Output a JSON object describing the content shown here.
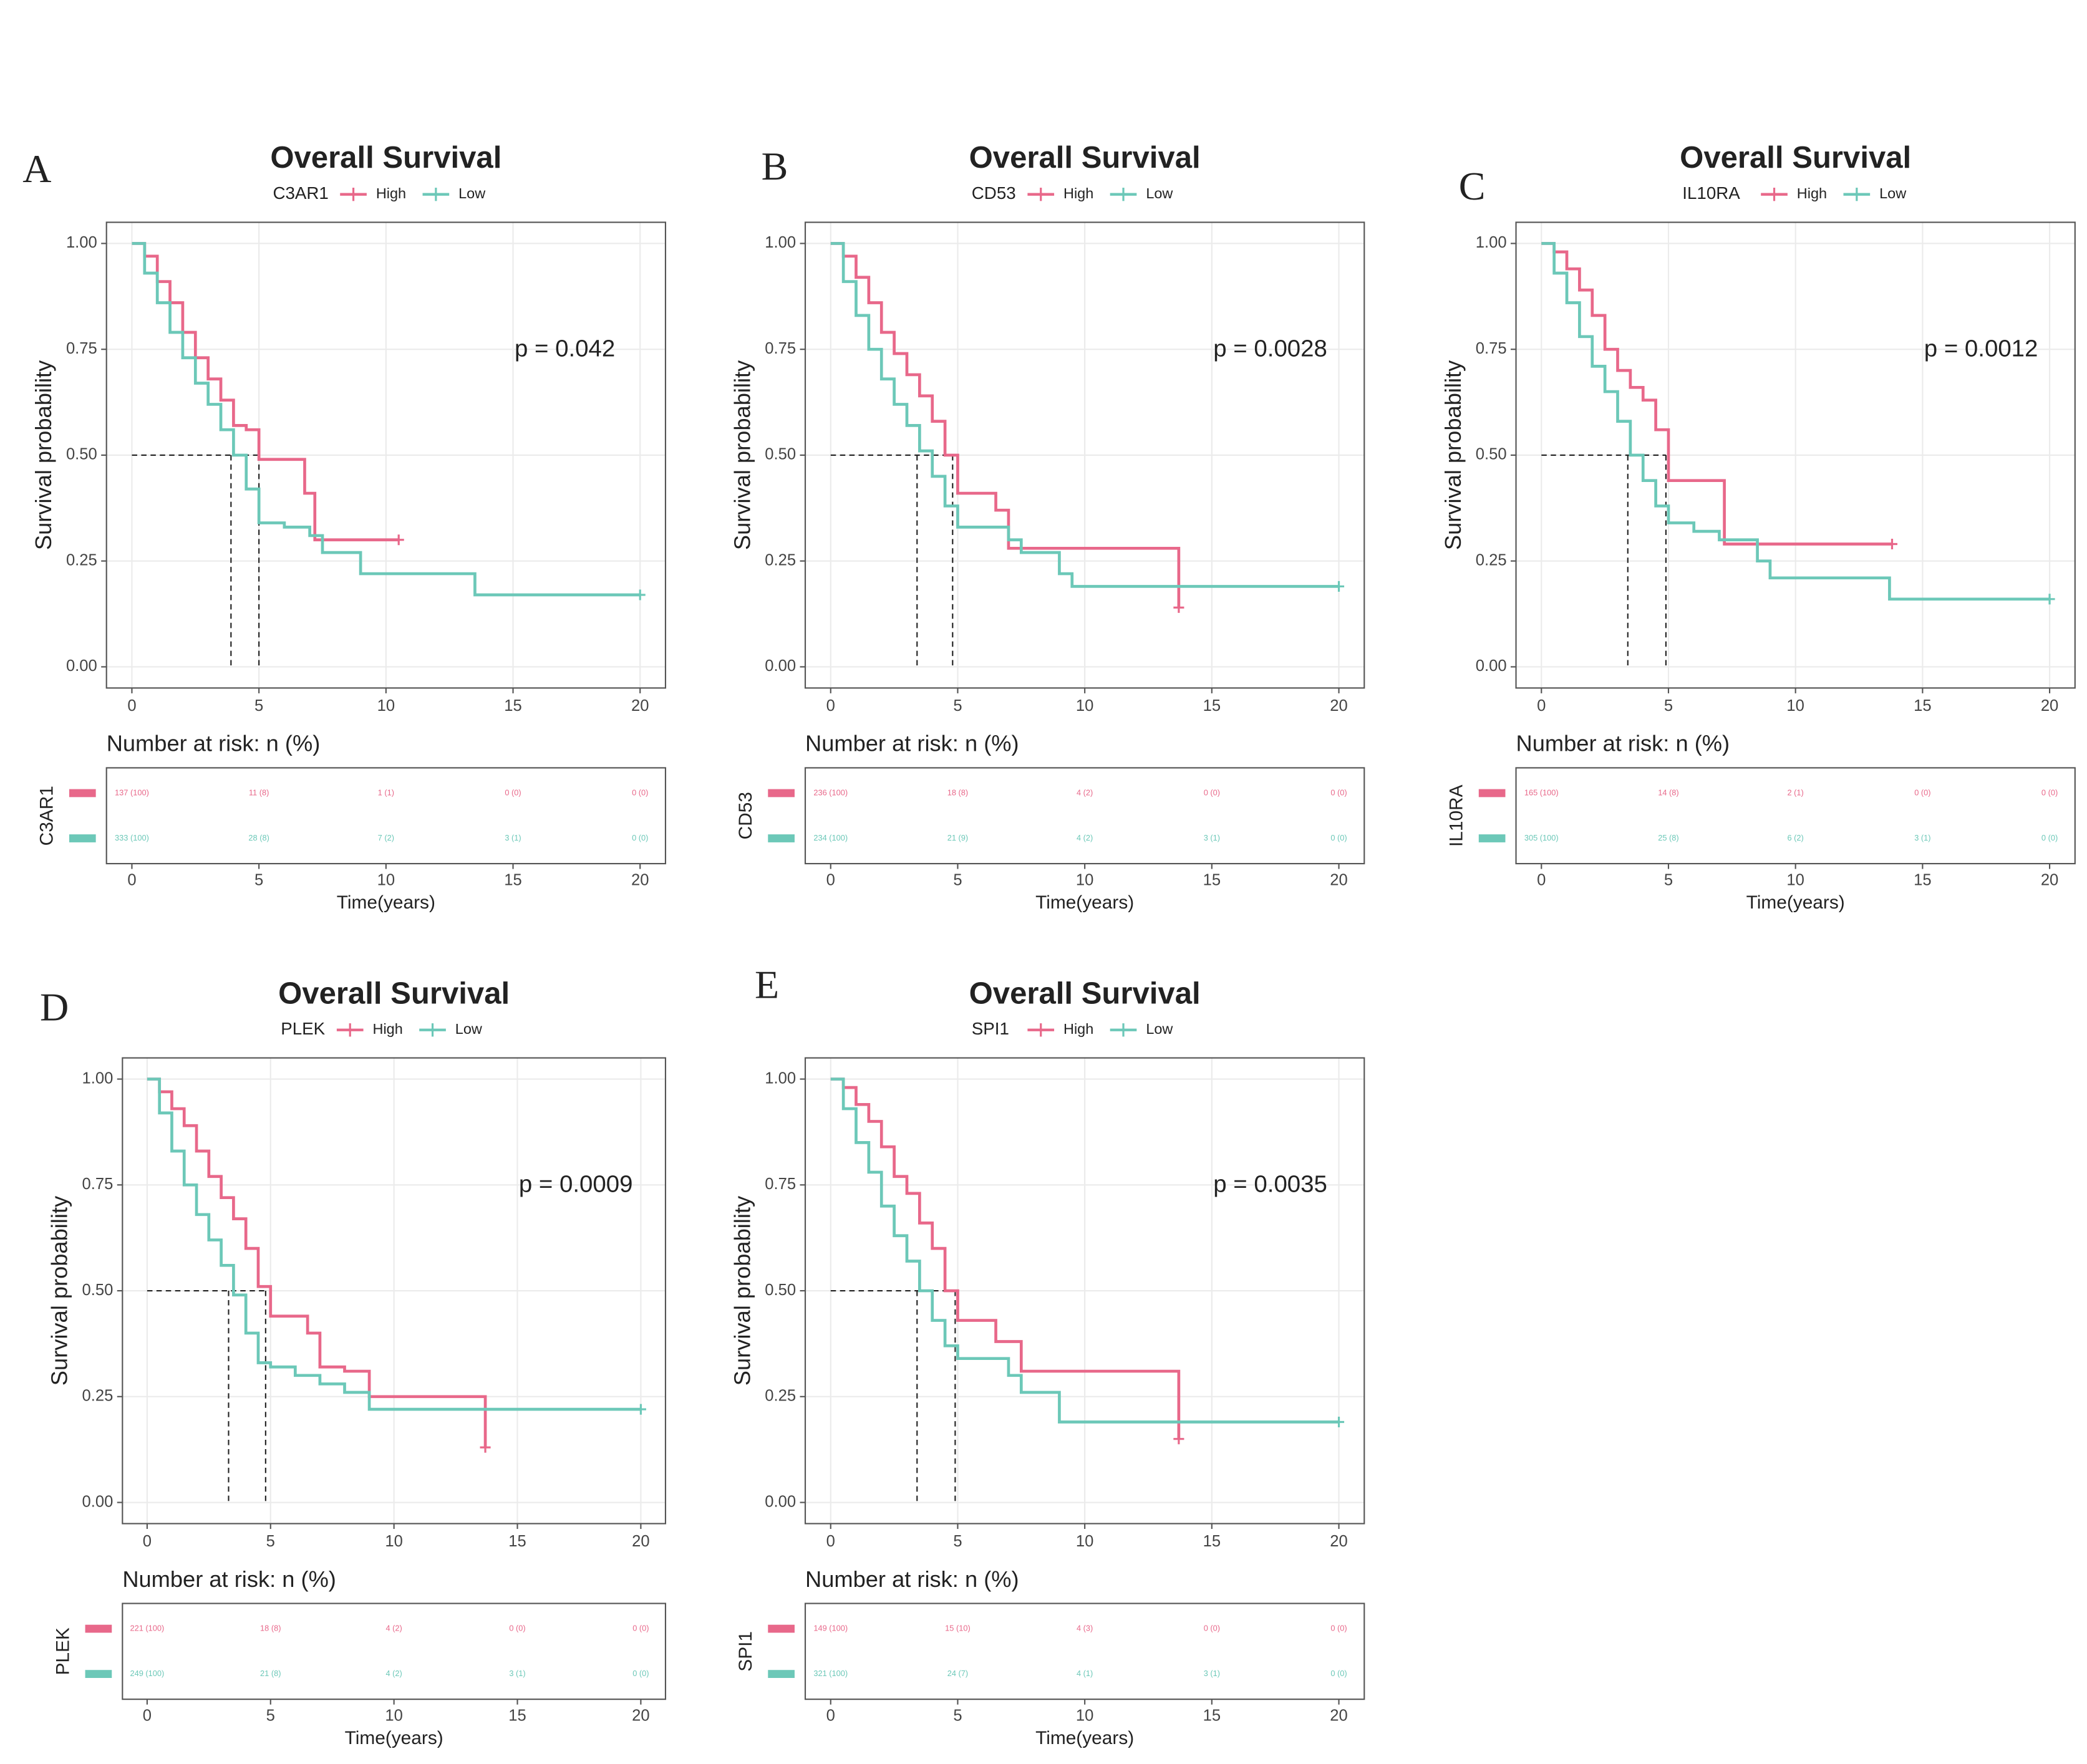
{
  "chart_data": [
    {
      "type": "step",
      "panel": "A",
      "title": "Overall Survival",
      "legend_title": "C3AR1",
      "annotation": "p = 0.042",
      "ylabel": "Survival probability",
      "xlabel": "Time(years)",
      "xlim": [
        -1,
        21
      ],
      "ylim": [
        -0.05,
        1.05
      ],
      "xticks": [
        0,
        5,
        10,
        15,
        20
      ],
      "yticks": [
        {
          "value": 0,
          "label": "0.00"
        },
        {
          "value": 0.25,
          "label": "0.25"
        },
        {
          "value": 0.5,
          "label": "0.50"
        },
        {
          "value": 0.75,
          "label": "0.75"
        },
        {
          "value": 1,
          "label": "1.00"
        }
      ],
      "grid": true,
      "series": [
        {
          "name": "High",
          "color": "#e8688a",
          "median": 5,
          "x": [
            0,
            0.5,
            1,
            1.5,
            2,
            2.5,
            3,
            3.5,
            4,
            4.5,
            5,
            6.8,
            7.2,
            10.5
          ],
          "values": [
            1,
            0.97,
            0.91,
            0.86,
            0.79,
            0.73,
            0.68,
            0.63,
            0.57,
            0.56,
            0.49,
            0.41,
            0.3,
            0.3
          ]
        },
        {
          "name": "Low",
          "color": "#6cc8b8",
          "median": 3.9,
          "x": [
            0,
            0.5,
            1,
            1.5,
            2,
            2.5,
            3,
            3.5,
            4,
            4.5,
            5,
            6,
            7,
            7.5,
            9,
            10,
            13.5,
            20
          ],
          "values": [
            1,
            0.93,
            0.86,
            0.79,
            0.73,
            0.67,
            0.62,
            0.56,
            0.5,
            0.42,
            0.34,
            0.33,
            0.31,
            0.27,
            0.22,
            0.22,
            0.17,
            0.17
          ]
        }
      ],
      "risk_table": {
        "title": "Number at risk: n (%)",
        "ylabel": "C3AR1",
        "rows": [
          [
            "137 (100)",
            "11 (8)",
            "1 (1)",
            "0 (0)",
            "0 (0)"
          ],
          [
            "333 (100)",
            "28 (8)",
            "7 (2)",
            "3 (1)",
            "0 (0)"
          ]
        ]
      }
    },
    {
      "type": "step",
      "panel": "B",
      "title": "Overall Survival",
      "legend_title": "CD53",
      "annotation": "p = 0.0028",
      "ylabel": "Survival probability",
      "xlabel": "Time(years)",
      "xlim": [
        -1,
        21
      ],
      "ylim": [
        -0.05,
        1.05
      ],
      "xticks": [
        0,
        5,
        10,
        15,
        20
      ],
      "yticks": [
        {
          "value": 0,
          "label": "0.00"
        },
        {
          "value": 0.25,
          "label": "0.25"
        },
        {
          "value": 0.5,
          "label": "0.50"
        },
        {
          "value": 0.75,
          "label": "0.75"
        },
        {
          "value": 1,
          "label": "1.00"
        }
      ],
      "grid": true,
      "series": [
        {
          "name": "High",
          "color": "#e8688a",
          "median": 4.8,
          "x": [
            0,
            0.5,
            1,
            1.5,
            2,
            2.5,
            3,
            3.5,
            4,
            4.5,
            5,
            6.5,
            7,
            13.6,
            13.7
          ],
          "values": [
            1,
            0.97,
            0.92,
            0.86,
            0.79,
            0.74,
            0.69,
            0.64,
            0.58,
            0.5,
            0.41,
            0.37,
            0.28,
            0.28,
            0.14
          ]
        },
        {
          "name": "Low",
          "color": "#6cc8b8",
          "median": 3.4,
          "x": [
            0,
            0.5,
            1,
            1.5,
            2,
            2.5,
            3,
            3.5,
            4,
            4.5,
            5,
            6,
            7,
            7.5,
            9,
            9.5,
            20
          ],
          "values": [
            1,
            0.91,
            0.83,
            0.75,
            0.68,
            0.62,
            0.57,
            0.51,
            0.45,
            0.38,
            0.33,
            0.33,
            0.3,
            0.27,
            0.22,
            0.19,
            0.19
          ]
        }
      ],
      "risk_table": {
        "title": "Number at risk: n (%)",
        "ylabel": "CD53",
        "rows": [
          [
            "236 (100)",
            "18 (8)",
            "4 (2)",
            "0 (0)",
            "0 (0)"
          ],
          [
            "234 (100)",
            "21 (9)",
            "4 (2)",
            "3 (1)",
            "0 (0)"
          ]
        ]
      }
    },
    {
      "type": "step",
      "panel": "C",
      "title": "Overall Survival",
      "legend_title": "IL10RA",
      "annotation": "p = 0.0012",
      "ylabel": "Survival probability",
      "xlabel": "Time(years)",
      "xlim": [
        -1,
        21
      ],
      "ylim": [
        -0.05,
        1.05
      ],
      "xticks": [
        0,
        5,
        10,
        15,
        20
      ],
      "yticks": [
        {
          "value": 0,
          "label": "0.00"
        },
        {
          "value": 0.25,
          "label": "0.25"
        },
        {
          "value": 0.5,
          "label": "0.50"
        },
        {
          "value": 0.75,
          "label": "0.75"
        },
        {
          "value": 1,
          "label": "1.00"
        }
      ],
      "grid": true,
      "series": [
        {
          "name": "High",
          "color": "#e8688a",
          "median": 4.9,
          "x": [
            0,
            0.5,
            1,
            1.5,
            2,
            2.5,
            3,
            3.5,
            4,
            4.5,
            5,
            7.2,
            13.8
          ],
          "values": [
            1,
            0.98,
            0.94,
            0.89,
            0.83,
            0.75,
            0.7,
            0.66,
            0.63,
            0.56,
            0.44,
            0.29,
            0.29
          ]
        },
        {
          "name": "Low",
          "color": "#6cc8b8",
          "median": 3.4,
          "x": [
            0,
            0.5,
            1,
            1.5,
            2,
            2.5,
            3,
            3.5,
            4,
            4.5,
            5,
            6,
            7,
            8.5,
            9,
            13.7,
            20
          ],
          "values": [
            1,
            0.93,
            0.86,
            0.78,
            0.71,
            0.65,
            0.58,
            0.5,
            0.44,
            0.38,
            0.34,
            0.32,
            0.3,
            0.25,
            0.21,
            0.16,
            0.16
          ]
        }
      ],
      "risk_table": {
        "title": "Number at risk: n (%)",
        "ylabel": "IL10RA",
        "rows": [
          [
            "165 (100)",
            "14 (8)",
            "2 (1)",
            "0 (0)",
            "0 (0)"
          ],
          [
            "305 (100)",
            "25 (8)",
            "6 (2)",
            "3 (1)",
            "0 (0)"
          ]
        ]
      }
    },
    {
      "type": "step",
      "panel": "D",
      "title": "Overall Survival",
      "legend_title": "PLEK",
      "annotation": "p = 0.0009",
      "ylabel": "Survival probability",
      "xlabel": "Time(years)",
      "xlim": [
        -1,
        21
      ],
      "ylim": [
        -0.05,
        1.05
      ],
      "xticks": [
        0,
        5,
        10,
        15,
        20
      ],
      "yticks": [
        {
          "value": 0,
          "label": "0.00"
        },
        {
          "value": 0.25,
          "label": "0.25"
        },
        {
          "value": 0.5,
          "label": "0.50"
        },
        {
          "value": 0.75,
          "label": "0.75"
        },
        {
          "value": 1,
          "label": "1.00"
        }
      ],
      "grid": true,
      "series": [
        {
          "name": "High",
          "color": "#e8688a",
          "median": 4.8,
          "x": [
            0,
            0.5,
            1,
            1.5,
            2,
            2.5,
            3,
            3.5,
            4,
            4.5,
            5,
            6,
            6.5,
            7,
            8,
            9,
            13.5,
            13.7
          ],
          "values": [
            1,
            0.97,
            0.93,
            0.89,
            0.83,
            0.77,
            0.72,
            0.67,
            0.6,
            0.51,
            0.44,
            0.44,
            0.4,
            0.32,
            0.31,
            0.25,
            0.25,
            0.13
          ]
        },
        {
          "name": "Low",
          "color": "#6cc8b8",
          "median": 3.3,
          "x": [
            0,
            0.5,
            1,
            1.5,
            2,
            2.5,
            3,
            3.5,
            4,
            4.5,
            5,
            6,
            7,
            8,
            9,
            20
          ],
          "values": [
            1,
            0.92,
            0.83,
            0.75,
            0.68,
            0.62,
            0.56,
            0.49,
            0.4,
            0.33,
            0.32,
            0.3,
            0.28,
            0.26,
            0.22,
            0.22
          ]
        }
      ],
      "risk_table": {
        "title": "Number at risk: n (%)",
        "ylabel": "PLEK",
        "rows": [
          [
            "221 (100)",
            "18 (8)",
            "4 (2)",
            "0 (0)",
            "0 (0)"
          ],
          [
            "249 (100)",
            "21 (8)",
            "4 (2)",
            "3 (1)",
            "0 (0)"
          ]
        ]
      }
    },
    {
      "type": "step",
      "panel": "E",
      "title": "Overall Survival",
      "legend_title": "SPI1",
      "annotation": "p = 0.0035",
      "ylabel": "Survival probability",
      "xlabel": "Time(years)",
      "xlim": [
        -1,
        21
      ],
      "ylim": [
        -0.05,
        1.05
      ],
      "xticks": [
        0,
        5,
        10,
        15,
        20
      ],
      "yticks": [
        {
          "value": 0,
          "label": "0.00"
        },
        {
          "value": 0.25,
          "label": "0.25"
        },
        {
          "value": 0.5,
          "label": "0.50"
        },
        {
          "value": 0.75,
          "label": "0.75"
        },
        {
          "value": 1,
          "label": "1.00"
        }
      ],
      "grid": true,
      "series": [
        {
          "name": "High",
          "color": "#e8688a",
          "median": 4.9,
          "x": [
            0,
            0.5,
            1,
            1.5,
            2,
            2.5,
            3,
            3.5,
            4,
            4.5,
            5,
            6.5,
            7.5,
            13.6,
            13.7
          ],
          "values": [
            1,
            0.98,
            0.94,
            0.9,
            0.84,
            0.77,
            0.73,
            0.66,
            0.6,
            0.5,
            0.43,
            0.38,
            0.31,
            0.31,
            0.15
          ]
        },
        {
          "name": "Low",
          "color": "#6cc8b8",
          "median": 3.4,
          "x": [
            0,
            0.5,
            1,
            1.5,
            2,
            2.5,
            3,
            3.5,
            4,
            4.5,
            5,
            6,
            7,
            7.5,
            9,
            20
          ],
          "values": [
            1,
            0.93,
            0.85,
            0.78,
            0.7,
            0.63,
            0.57,
            0.5,
            0.43,
            0.37,
            0.34,
            0.34,
            0.3,
            0.26,
            0.19,
            0.19
          ]
        }
      ],
      "risk_table": {
        "title": "Number at risk: n (%)",
        "ylabel": "SPI1",
        "rows": [
          [
            "149 (100)",
            "15 (10)",
            "4 (3)",
            "0 (0)",
            "0 (0)"
          ],
          [
            "321 (100)",
            "24 (7)",
            "4 (1)",
            "3 (1)",
            "0 (0)"
          ]
        ]
      }
    }
  ]
}
